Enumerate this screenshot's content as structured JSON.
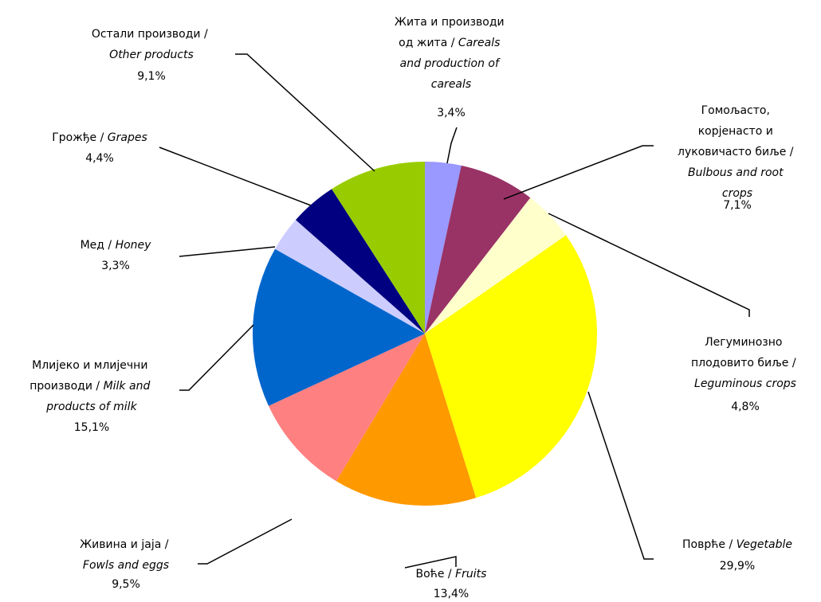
{
  "chart_data": {
    "type": "pie",
    "categories": [
      "Жита и производи од жита / Careals and production of careals",
      "Гомољасто, корјенасто и луковичасто биље / Bulbous and root crops",
      "Легуминозно плодовито биље / Leguminous crops",
      "Поврће / Vegetable",
      "Воће / Fruits",
      "Живина и јаја / Fowls and eggs",
      "Млијеко и млијечни производи / Milk and products of milk",
      "Мед / Honey",
      "Грожђе / Grapes",
      "Остали производи / Other products"
    ],
    "values": [
      3.4,
      7.1,
      4.8,
      29.9,
      13.4,
      9.5,
      15.1,
      3.3,
      4.4,
      9.1
    ],
    "value_labels": [
      "3,4%",
      "7,1%",
      "4,8%",
      "29,9%",
      "13,4%",
      "9,5%",
      "15,1%",
      "3,3%",
      "4,4%",
      "9,1%"
    ],
    "colors": [
      "#9999ff",
      "#993366",
      "#ffffcc",
      "#ffff00",
      "#ff9900",
      "#ff8080",
      "#0066cc",
      "#ccccff",
      "#000080",
      "#99cc00"
    ]
  }
}
